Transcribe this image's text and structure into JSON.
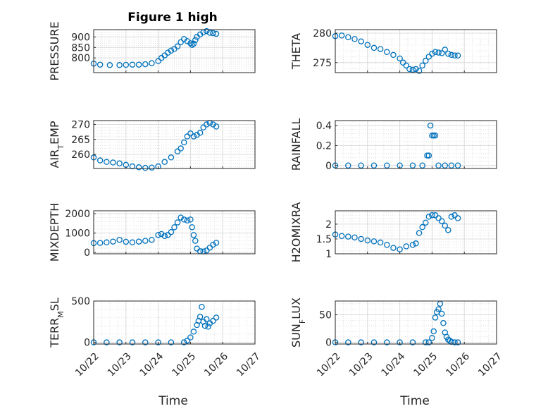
{
  "figure_title": "Figure 1 high",
  "x_axis_label": "Time",
  "x_tick_labels": [
    "10/22",
    "10/23",
    "10/24",
    "10/25",
    "10/26",
    "10/27"
  ],
  "marker_color": "#0072BD",
  "chart_data": [
    {
      "type": "scatter",
      "panel": "left-1",
      "ylabel": "PRESSURE",
      "ylim": [
        730,
        935
      ],
      "yticks": [
        800,
        850,
        900
      ],
      "x": [
        0,
        0.2,
        0.5,
        0.8,
        1,
        1.2,
        1.4,
        1.6,
        1.8,
        2,
        2.1,
        2.2,
        2.3,
        2.4,
        2.5,
        2.6,
        2.7,
        2.8,
        2.9,
        3.0,
        3.05,
        3.1,
        3.15,
        3.2,
        3.3,
        3.4,
        3.5,
        3.6,
        3.7,
        3.8
      ],
      "y": [
        773,
        768,
        766,
        766,
        767,
        768,
        768,
        770,
        775,
        785,
        800,
        812,
        825,
        835,
        843,
        855,
        875,
        890,
        880,
        870,
        862,
        868,
        885,
        900,
        912,
        922,
        928,
        920,
        918,
        915
      ]
    },
    {
      "type": "scatter",
      "panel": "right-1",
      "ylabel": "THETA",
      "ylim": [
        273.3,
        280.6
      ],
      "yticks": [
        275,
        280
      ],
      "x": [
        0,
        0.2,
        0.4,
        0.6,
        0.8,
        1,
        1.2,
        1.4,
        1.6,
        1.8,
        2,
        2.1,
        2.2,
        2.3,
        2.4,
        2.5,
        2.6,
        2.7,
        2.8,
        2.9,
        3.0,
        3.1,
        3.2,
        3.3,
        3.4,
        3.5,
        3.6,
        3.7,
        3.8
      ],
      "y": [
        279.5,
        279.6,
        279.3,
        279,
        278.6,
        278,
        277.5,
        277.3,
        276.8,
        276.3,
        275.7,
        275,
        274.5,
        273.9,
        273.8,
        273.9,
        273.6,
        274.5,
        275.3,
        276,
        276.5,
        276.8,
        276.7,
        276.6,
        277.2,
        276.5,
        276.3,
        276.2,
        276.2
      ]
    },
    {
      "type": "scatter",
      "panel": "left-2",
      "ylabel": "AIR_TEMP",
      "ylim": [
        255.3,
        271.3
      ],
      "yticks": [
        260,
        265,
        270
      ],
      "x": [
        0,
        0.2,
        0.4,
        0.6,
        0.8,
        1,
        1.2,
        1.4,
        1.6,
        1.8,
        2,
        2.2,
        2.4,
        2.6,
        2.7,
        2.8,
        2.9,
        3.0,
        3.1,
        3.2,
        3.3,
        3.4,
        3.5,
        3.6,
        3.7,
        3.8
      ],
      "y": [
        259,
        258,
        257.5,
        257.3,
        257,
        256.5,
        256,
        255.7,
        255.5,
        255.6,
        256,
        257.5,
        259,
        261,
        262,
        264,
        266,
        267,
        266,
        266.5,
        267.2,
        269,
        270,
        270.5,
        270,
        269.3
      ]
    },
    {
      "type": "scatter",
      "panel": "right-2",
      "ylabel": "RAINFALL",
      "ylim": [
        -0.03,
        0.45
      ],
      "yticks": [
        0,
        0.2,
        0.4
      ],
      "x": [
        0,
        0.4,
        0.8,
        1.2,
        1.6,
        2.0,
        2.4,
        2.7,
        2.85,
        2.9,
        2.95,
        3.0,
        3.05,
        3.1,
        3.2,
        3.4,
        3.6,
        3.8
      ],
      "y": [
        0,
        0,
        0,
        0,
        0,
        0,
        0,
        0,
        0.1,
        0.1,
        0.4,
        0.3,
        0.3,
        0.3,
        0,
        0,
        0,
        0
      ]
    },
    {
      "type": "scatter",
      "panel": "left-3",
      "ylabel": "MIXDEPTH",
      "ylim": [
        -70,
        2150
      ],
      "yticks": [
        0,
        1000,
        2000
      ],
      "x": [
        0,
        0.2,
        0.4,
        0.6,
        0.8,
        1,
        1.2,
        1.4,
        1.6,
        1.8,
        2,
        2.1,
        2.2,
        2.3,
        2.4,
        2.5,
        2.6,
        2.7,
        2.8,
        2.9,
        3.0,
        3.05,
        3.1,
        3.15,
        3.2,
        3.3,
        3.4,
        3.5,
        3.6,
        3.7,
        3.8
      ],
      "y": [
        480,
        490,
        520,
        560,
        650,
        550,
        520,
        560,
        600,
        650,
        900,
        950,
        850,
        900,
        1050,
        1300,
        1550,
        1800,
        1700,
        1650,
        1700,
        1300,
        900,
        600,
        200,
        60,
        50,
        100,
        250,
        400,
        500
      ]
    },
    {
      "type": "scatter",
      "panel": "right-3",
      "ylabel": "H2OMIXRA",
      "ylim": [
        1,
        2.45
      ],
      "yticks": [
        1,
        1.5,
        2
      ],
      "x": [
        0,
        0.2,
        0.4,
        0.6,
        0.8,
        1,
        1.2,
        1.4,
        1.6,
        1.8,
        2,
        2.2,
        2.4,
        2.5,
        2.6,
        2.7,
        2.8,
        2.9,
        3.0,
        3.1,
        3.2,
        3.3,
        3.4,
        3.5,
        3.6,
        3.7,
        3.8
      ],
      "y": [
        1.65,
        1.6,
        1.58,
        1.55,
        1.5,
        1.45,
        1.42,
        1.38,
        1.3,
        1.2,
        1.15,
        1.25,
        1.3,
        1.35,
        1.7,
        1.9,
        2.05,
        2.25,
        2.3,
        2.3,
        2.2,
        2.1,
        1.95,
        1.8,
        2.25,
        2.3,
        2.2
      ]
    },
    {
      "type": "scatter",
      "panel": "left-4",
      "ylabel": "TERR_MSL",
      "ylim": [
        -20,
        500
      ],
      "yticks": [
        0,
        500
      ],
      "x": [
        0,
        0.4,
        0.8,
        1.2,
        1.6,
        2.0,
        2.4,
        2.8,
        2.9,
        3.0,
        3.1,
        3.2,
        3.25,
        3.3,
        3.35,
        3.4,
        3.45,
        3.5,
        3.55,
        3.6,
        3.7,
        3.8
      ],
      "y": [
        0,
        0,
        0,
        0,
        0,
        0,
        0,
        0,
        20,
        60,
        130,
        210,
        260,
        310,
        430,
        250,
        200,
        280,
        190,
        230,
        260,
        300
      ]
    },
    {
      "type": "scatter",
      "panel": "right-4",
      "ylabel": "SUN_FLUX",
      "ylim": [
        -3,
        75
      ],
      "yticks": [
        0,
        50
      ],
      "x": [
        0,
        0.4,
        0.8,
        1.2,
        1.6,
        2.0,
        2.4,
        2.8,
        2.9,
        3.0,
        3.05,
        3.1,
        3.15,
        3.2,
        3.25,
        3.3,
        3.35,
        3.4,
        3.45,
        3.5,
        3.55,
        3.6,
        3.7,
        3.8
      ],
      "y": [
        0,
        0,
        0,
        0,
        0,
        0,
        0,
        0,
        0,
        8,
        20,
        45,
        55,
        60,
        70,
        52,
        35,
        18,
        10,
        5,
        3,
        1,
        0,
        0
      ]
    }
  ]
}
